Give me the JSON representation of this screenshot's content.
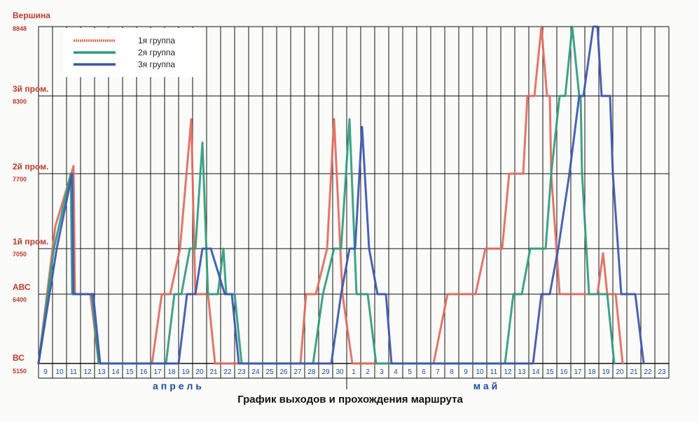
{
  "chart_data": {
    "type": "line",
    "title": "График выходов и прохождения маршрута",
    "x_ticks": [
      "9",
      "10",
      "11",
      "12",
      "13",
      "14",
      "15",
      "16",
      "17",
      "18",
      "19",
      "20",
      "21",
      "22",
      "23",
      "24",
      "25",
      "26",
      "27",
      "28",
      "29",
      "30",
      "1",
      "2",
      "3",
      "4",
      "5",
      "6",
      "7",
      "8",
      "9",
      "10",
      "11",
      "12",
      "13",
      "14",
      "15",
      "16",
      "17",
      "18",
      "19",
      "20",
      "21",
      "22",
      "23"
    ],
    "months": [
      {
        "label": "апрель",
        "at_tick": 10
      },
      {
        "label": "май",
        "at_tick": 32
      }
    ],
    "levels": [
      {
        "name": "ВС",
        "altitude": "5150",
        "value": 5150
      },
      {
        "name": "АВС",
        "altitude": "6400",
        "value": 6400
      },
      {
        "name": "1й пром.",
        "altitude": "7050",
        "value": 7050
      },
      {
        "name": "2й пром.",
        "altitude": "7700",
        "value": 7700
      },
      {
        "name": "3й пром.",
        "altitude": "8300",
        "value": 8300
      },
      {
        "name": "Вершина",
        "altitude": "8848",
        "value": 8848
      }
    ],
    "legend": {
      "position": "top-left"
    },
    "series": [
      {
        "name": "1я группа",
        "color": "#e06a5c",
        "points": [
          [
            0,
            0
          ],
          [
            1.2,
            2.3
          ],
          [
            2.5,
            3.1
          ],
          [
            2.6,
            1
          ],
          [
            3.7,
            1
          ],
          [
            4.3,
            0
          ],
          [
            8.1,
            0
          ],
          [
            8.8,
            1
          ],
          [
            9.4,
            1
          ],
          [
            10.1,
            2
          ],
          [
            10.9,
            3.7
          ],
          [
            11.2,
            1
          ],
          [
            12.1,
            1
          ],
          [
            12.6,
            0
          ],
          [
            18.7,
            0
          ],
          [
            19.1,
            1
          ],
          [
            19.8,
            1
          ],
          [
            20.6,
            2
          ],
          [
            21.1,
            3.7
          ],
          [
            21.7,
            1
          ],
          [
            22.4,
            0
          ],
          [
            28.2,
            0
          ],
          [
            29.2,
            1
          ],
          [
            30.6,
            1
          ],
          [
            31.2,
            1
          ],
          [
            31.9,
            2
          ],
          [
            33.1,
            2
          ],
          [
            33.6,
            3
          ],
          [
            34.6,
            3
          ],
          [
            34.9,
            4
          ],
          [
            35.4,
            4
          ],
          [
            35.9,
            5
          ],
          [
            36.3,
            4
          ],
          [
            36.5,
            4
          ],
          [
            36.6,
            3
          ],
          [
            37.2,
            1
          ],
          [
            38.3,
            1
          ],
          [
            39.9,
            1
          ],
          [
            40.3,
            1.9
          ],
          [
            40.6,
            1
          ],
          [
            41.2,
            1
          ],
          [
            41.7,
            0
          ]
        ]
      },
      {
        "name": "2я группа",
        "color": "#2e9b7e",
        "points": [
          [
            0,
            0
          ],
          [
            1.1,
            2
          ],
          [
            2.3,
            3
          ],
          [
            2.4,
            1
          ],
          [
            3.8,
            1
          ],
          [
            4.3,
            0
          ],
          [
            9.1,
            0
          ],
          [
            9.7,
            1
          ],
          [
            10.2,
            1
          ],
          [
            10.8,
            2
          ],
          [
            11.2,
            2
          ],
          [
            11.7,
            3.4
          ],
          [
            12.1,
            1
          ],
          [
            12.8,
            1
          ],
          [
            13.2,
            2
          ],
          [
            13.4,
            1
          ],
          [
            14,
            1
          ],
          [
            14.5,
            0
          ],
          [
            19.6,
            0
          ],
          [
            20.3,
            1
          ],
          [
            21.1,
            2
          ],
          [
            21.6,
            2
          ],
          [
            22.2,
            3.7
          ],
          [
            22.7,
            1
          ],
          [
            23.5,
            1
          ],
          [
            24.1,
            0
          ],
          [
            33.3,
            0
          ],
          [
            33.9,
            1
          ],
          [
            34.5,
            1
          ],
          [
            35.1,
            2
          ],
          [
            36.2,
            2
          ],
          [
            36.6,
            3
          ],
          [
            37.2,
            4
          ],
          [
            37.6,
            4
          ],
          [
            38.1,
            5
          ],
          [
            38.6,
            4
          ],
          [
            38.7,
            4
          ],
          [
            38.8,
            3
          ],
          [
            39.3,
            1
          ],
          [
            40.6,
            1
          ],
          [
            41.1,
            0
          ]
        ]
      },
      {
        "name": "3я группа",
        "color": "#3a55b0",
        "points": [
          [
            0,
            0
          ],
          [
            1.3,
            2
          ],
          [
            2.4,
            3
          ],
          [
            2.5,
            1
          ],
          [
            3.9,
            1
          ],
          [
            4.4,
            0
          ],
          [
            10,
            0
          ],
          [
            10.6,
            1
          ],
          [
            11.2,
            1
          ],
          [
            11.7,
            2
          ],
          [
            12.3,
            2
          ],
          [
            13.3,
            1
          ],
          [
            13.8,
            1
          ],
          [
            14.3,
            0
          ],
          [
            20.9,
            0
          ],
          [
            21.6,
            1
          ],
          [
            22.2,
            2
          ],
          [
            22.6,
            2
          ],
          [
            23.1,
            3.6
          ],
          [
            23.6,
            2
          ],
          [
            24.2,
            1
          ],
          [
            24.8,
            1
          ],
          [
            25.2,
            0
          ],
          [
            35.3,
            0
          ],
          [
            35.9,
            1
          ],
          [
            36.5,
            1
          ],
          [
            37.1,
            2
          ],
          [
            37.9,
            3
          ],
          [
            38.6,
            4
          ],
          [
            38.9,
            4
          ],
          [
            39.6,
            5
          ],
          [
            39.9,
            5
          ],
          [
            40.2,
            4
          ],
          [
            40.8,
            4
          ],
          [
            41,
            3
          ],
          [
            41.6,
            1
          ],
          [
            42.6,
            1
          ],
          [
            43.2,
            0
          ]
        ]
      }
    ]
  }
}
